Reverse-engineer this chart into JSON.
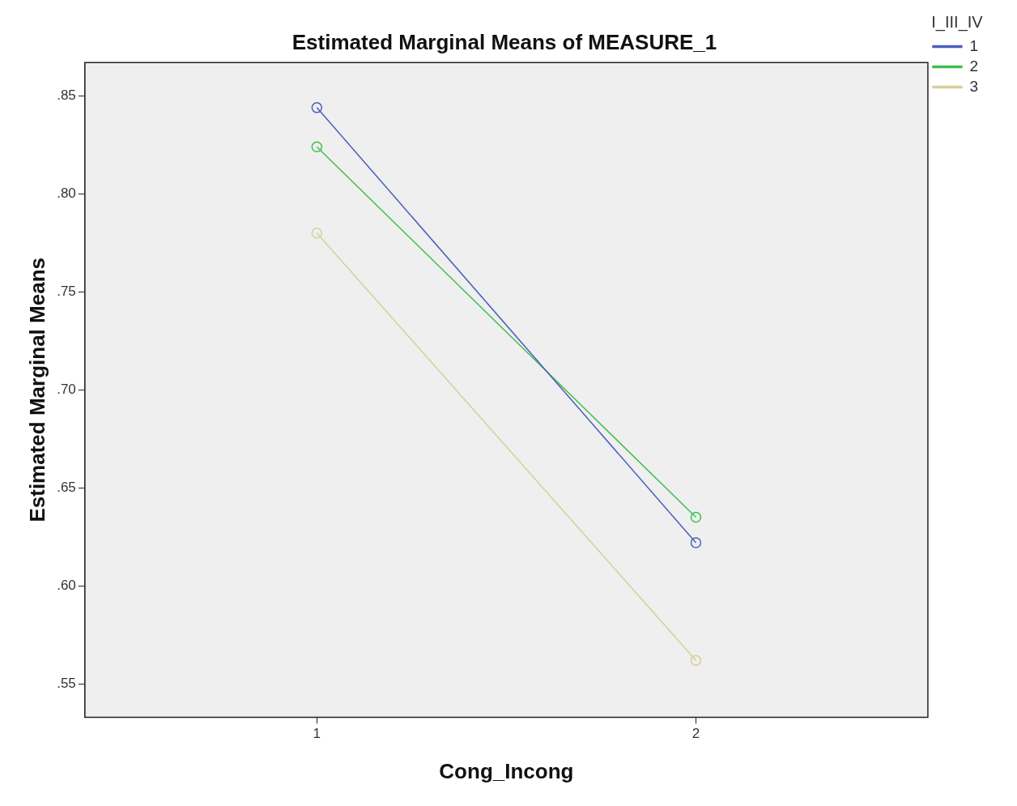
{
  "chart_data": {
    "type": "line",
    "title": "Estimated Marginal Means of MEASURE_1",
    "xlabel": "Cong_Incong",
    "ylabel": "Estimated Marginal Means",
    "legend_title": "I_III_IV",
    "categories": [
      "1",
      "2"
    ],
    "series": [
      {
        "name": "1",
        "color": "#4a5fbf",
        "values": [
          0.844,
          0.622
        ]
      },
      {
        "name": "2",
        "color": "#3fbf4f",
        "values": [
          0.824,
          0.635
        ]
      },
      {
        "name": "3",
        "color": "#d4d09a",
        "values": [
          0.78,
          0.562
        ]
      }
    ],
    "ylim": [
      0.533,
      0.867
    ],
    "yticks": [
      {
        "value": 0.55,
        "label": ".55"
      },
      {
        "value": 0.6,
        "label": ".60"
      },
      {
        "value": 0.65,
        "label": ".65"
      },
      {
        "value": 0.7,
        "label": ".70"
      },
      {
        "value": 0.75,
        "label": ".75"
      },
      {
        "value": 0.8,
        "label": ".80"
      },
      {
        "value": 0.85,
        "label": ".85"
      }
    ],
    "marker": "circle",
    "line_style": "solid",
    "grid": false,
    "legend": "top right"
  }
}
